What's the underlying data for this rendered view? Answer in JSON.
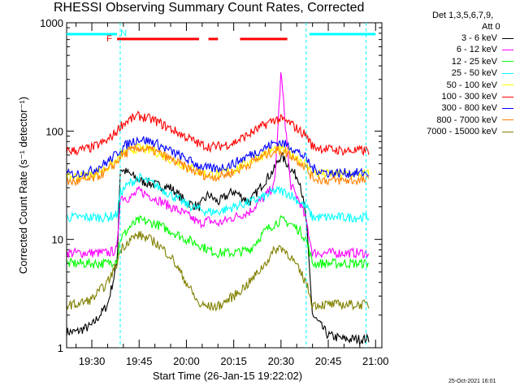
{
  "header": {
    "title": "RHESSI Observing Summary Count Rates, Corrected",
    "detectors": "Det 1,3,5,6,7,9,",
    "attenuator": "Att 0",
    "timestamp": "25-Oct-2021 16:01"
  },
  "chart_data": {
    "type": "line",
    "title": "RHESSI Observing Summary Count Rates, Corrected",
    "xlabel": "Start Time (26-Jan-15 19:22:02)",
    "ylabel": "Corrected Count Rate (s⁻¹ detector⁻¹)",
    "y_scale": "log",
    "ylim": [
      1,
      1000
    ],
    "xlim": [
      "19:22",
      "21:02"
    ],
    "x_ticks": [
      "19:30",
      "19:45",
      "20:00",
      "20:15",
      "20:30",
      "20:45",
      "21:00"
    ],
    "y_ticks": [
      "1",
      "10",
      "100",
      "1000"
    ],
    "legend_position": "right, outside plot",
    "markers": {
      "night_bars": [
        [
          "19:22",
          "19:38"
        ],
        [
          "20:39",
          "21:00"
        ]
      ],
      "night_label": "N",
      "flare_label": "F",
      "flare_bars": [
        [
          "19:38",
          "20:04"
        ],
        [
          "20:07",
          "20:10"
        ],
        [
          "20:17",
          "20:32"
        ]
      ],
      "dashed_lines": [
        "19:39",
        "20:38",
        "20:57"
      ]
    },
    "series": [
      {
        "name": "3 - 6 keV",
        "color": "#000000",
        "x": [
          "19:25",
          "19:30",
          "19:35",
          "19:38",
          "19:39",
          "19:42",
          "19:45",
          "19:50",
          "19:55",
          "20:00",
          "20:04",
          "20:07",
          "20:10",
          "20:15",
          "20:20",
          "20:25",
          "20:28",
          "20:30",
          "20:33",
          "20:36",
          "20:38",
          "20:40",
          "20:45",
          "20:50",
          "20:55"
        ],
        "y": [
          1.4,
          1.6,
          2.5,
          6,
          45,
          40,
          35,
          32,
          30,
          22,
          20,
          26,
          22,
          28,
          22,
          35,
          45,
          60,
          45,
          35,
          15,
          2,
          1.3,
          1.2,
          1.2
        ]
      },
      {
        "name": "6 - 12 keV",
        "color": "#ff00ff",
        "x": [
          "19:25",
          "19:30",
          "19:35",
          "19:38",
          "19:39",
          "19:42",
          "19:45",
          "19:50",
          "19:55",
          "20:00",
          "20:04",
          "20:07",
          "20:10",
          "20:15",
          "20:20",
          "20:25",
          "20:28",
          "20:30",
          "20:33",
          "20:36",
          "20:38",
          "20:40",
          "20:45",
          "20:50",
          "20:55"
        ],
        "y": [
          7.5,
          7.5,
          7.5,
          8,
          25,
          24,
          28,
          24,
          20,
          17,
          14,
          15,
          14,
          16,
          18,
          25,
          32,
          350,
          32,
          22,
          15,
          7.5,
          7.5,
          7.5,
          7.5
        ]
      },
      {
        "name": "12 - 25 keV",
        "color": "#00ff00",
        "x": [
          "19:25",
          "19:30",
          "19:35",
          "19:38",
          "19:39",
          "19:42",
          "19:45",
          "19:50",
          "19:55",
          "20:00",
          "20:04",
          "20:07",
          "20:10",
          "20:15",
          "20:20",
          "20:25",
          "20:28",
          "20:30",
          "20:33",
          "20:36",
          "20:38",
          "20:40",
          "20:45",
          "20:50",
          "20:55"
        ],
        "y": [
          6,
          6,
          6,
          6.5,
          10,
          13,
          15,
          14,
          12,
          10,
          9,
          8,
          7.5,
          7.5,
          8,
          12,
          14,
          15,
          14,
          12,
          10,
          6,
          6,
          6,
          6
        ]
      },
      {
        "name": "25 - 50 keV",
        "color": "#00ffff",
        "x": [
          "19:25",
          "19:30",
          "19:35",
          "19:38",
          "19:39",
          "19:42",
          "19:45",
          "19:50",
          "19:55",
          "20:00",
          "20:04",
          "20:07",
          "20:10",
          "20:15",
          "20:20",
          "20:25",
          "20:28",
          "20:30",
          "20:33",
          "20:36",
          "20:38",
          "20:40",
          "20:45",
          "20:50",
          "20:55"
        ],
        "y": [
          16,
          16,
          16,
          17,
          27,
          33,
          37,
          32,
          26,
          21,
          19,
          18,
          18,
          20,
          22,
          25,
          28,
          28,
          26,
          22,
          20,
          16,
          16,
          16,
          16
        ]
      },
      {
        "name": "50 - 100 keV",
        "color": "#ffff00",
        "x": [
          "19:25",
          "19:30",
          "19:35",
          "19:38",
          "19:39",
          "19:42",
          "19:45",
          "19:50",
          "19:55",
          "20:00",
          "20:04",
          "20:07",
          "20:10",
          "20:15",
          "20:20",
          "20:25",
          "20:28",
          "20:30",
          "20:33",
          "20:36",
          "20:38",
          "20:40",
          "20:45",
          "20:50",
          "20:55"
        ],
        "y": [
          38,
          40,
          46,
          54,
          60,
          66,
          70,
          65,
          55,
          47,
          42,
          40,
          40,
          44,
          52,
          62,
          68,
          68,
          62,
          55,
          50,
          41,
          40,
          40,
          40
        ]
      },
      {
        "name": "100 - 300 keV",
        "color": "#ff0000",
        "x": [
          "19:25",
          "19:30",
          "19:35",
          "19:38",
          "19:39",
          "19:42",
          "19:45",
          "19:50",
          "19:55",
          "20:00",
          "20:04",
          "20:07",
          "20:10",
          "20:15",
          "20:20",
          "20:25",
          "20:28",
          "20:30",
          "20:33",
          "20:36",
          "20:38",
          "20:40",
          "20:45",
          "20:50",
          "20:55"
        ],
        "y": [
          66,
          70,
          82,
          100,
          112,
          128,
          138,
          125,
          105,
          88,
          76,
          72,
          72,
          78,
          94,
          115,
          128,
          128,
          118,
          100,
          92,
          72,
          68,
          66,
          66
        ]
      },
      {
        "name": "300 - 800 keV",
        "color": "#0000ff",
        "x": [
          "19:25",
          "19:30",
          "19:35",
          "19:38",
          "19:39",
          "19:42",
          "19:45",
          "19:50",
          "19:55",
          "20:00",
          "20:04",
          "20:07",
          "20:10",
          "20:15",
          "20:20",
          "20:25",
          "20:28",
          "20:30",
          "20:33",
          "20:36",
          "20:38",
          "20:40",
          "20:45",
          "20:50",
          "20:55"
        ],
        "y": [
          40,
          43,
          52,
          62,
          68,
          78,
          85,
          78,
          65,
          55,
          48,
          45,
          45,
          50,
          60,
          70,
          78,
          78,
          72,
          62,
          56,
          45,
          41,
          41,
          41
        ]
      },
      {
        "name": "800 - 7000 keV",
        "color": "#ff8000",
        "x": [
          "19:25",
          "19:30",
          "19:35",
          "19:38",
          "19:39",
          "19:42",
          "19:45",
          "19:50",
          "19:55",
          "20:00",
          "20:04",
          "20:07",
          "20:10",
          "20:15",
          "20:20",
          "20:25",
          "20:28",
          "20:30",
          "20:33",
          "20:36",
          "20:38",
          "20:40",
          "20:45",
          "20:50",
          "20:55"
        ],
        "y": [
          34,
          36,
          43,
          52,
          58,
          65,
          70,
          65,
          55,
          46,
          41,
          38,
          38,
          42,
          50,
          60,
          66,
          66,
          60,
          52,
          46,
          37,
          35,
          35,
          35
        ]
      },
      {
        "name": "7000 - 15000 keV",
        "color": "#808000",
        "x": [
          "19:25",
          "19:30",
          "19:35",
          "19:38",
          "19:39",
          "19:42",
          "19:45",
          "19:50",
          "19:55",
          "20:00",
          "20:04",
          "20:07",
          "20:10",
          "20:15",
          "20:20",
          "20:25",
          "20:28",
          "20:30",
          "20:33",
          "20:36",
          "20:38",
          "20:40",
          "20:45",
          "20:50",
          "20:55"
        ],
        "y": [
          2.5,
          2.8,
          4,
          6,
          8,
          10,
          11,
          9.5,
          7,
          4,
          2.5,
          2.4,
          2.4,
          3,
          4,
          6,
          8,
          8.5,
          7,
          5,
          4,
          2.5,
          2.5,
          2.5,
          2.5
        ]
      }
    ]
  }
}
